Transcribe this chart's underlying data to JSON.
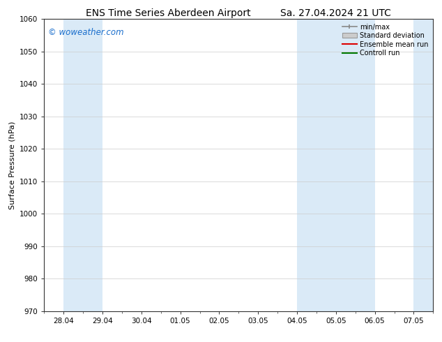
{
  "title_left": "ENS Time Series Aberdeen Airport",
  "title_right": "Sa. 27.04.2024 21 UTC",
  "ylabel": "Surface Pressure (hPa)",
  "ylim": [
    970,
    1060
  ],
  "yticks": [
    970,
    980,
    990,
    1000,
    1010,
    1020,
    1030,
    1040,
    1050,
    1060
  ],
  "xtick_labels": [
    "28.04",
    "29.04",
    "30.04",
    "01.05",
    "02.05",
    "03.05",
    "04.05",
    "05.05",
    "06.05",
    "07.05"
  ],
  "watermark": "© woweather.com",
  "watermark_color": "#1a6ecc",
  "bg_color": "#ffffff",
  "plot_bg_color": "#ffffff",
  "shaded_color": "#daeaf7",
  "legend_labels": [
    "min/max",
    "Standard deviation",
    "Ensemble mean run",
    "Controll run"
  ],
  "title_fontsize": 10,
  "axis_fontsize": 8,
  "tick_fontsize": 7.5,
  "watermark_fontsize": 8.5
}
